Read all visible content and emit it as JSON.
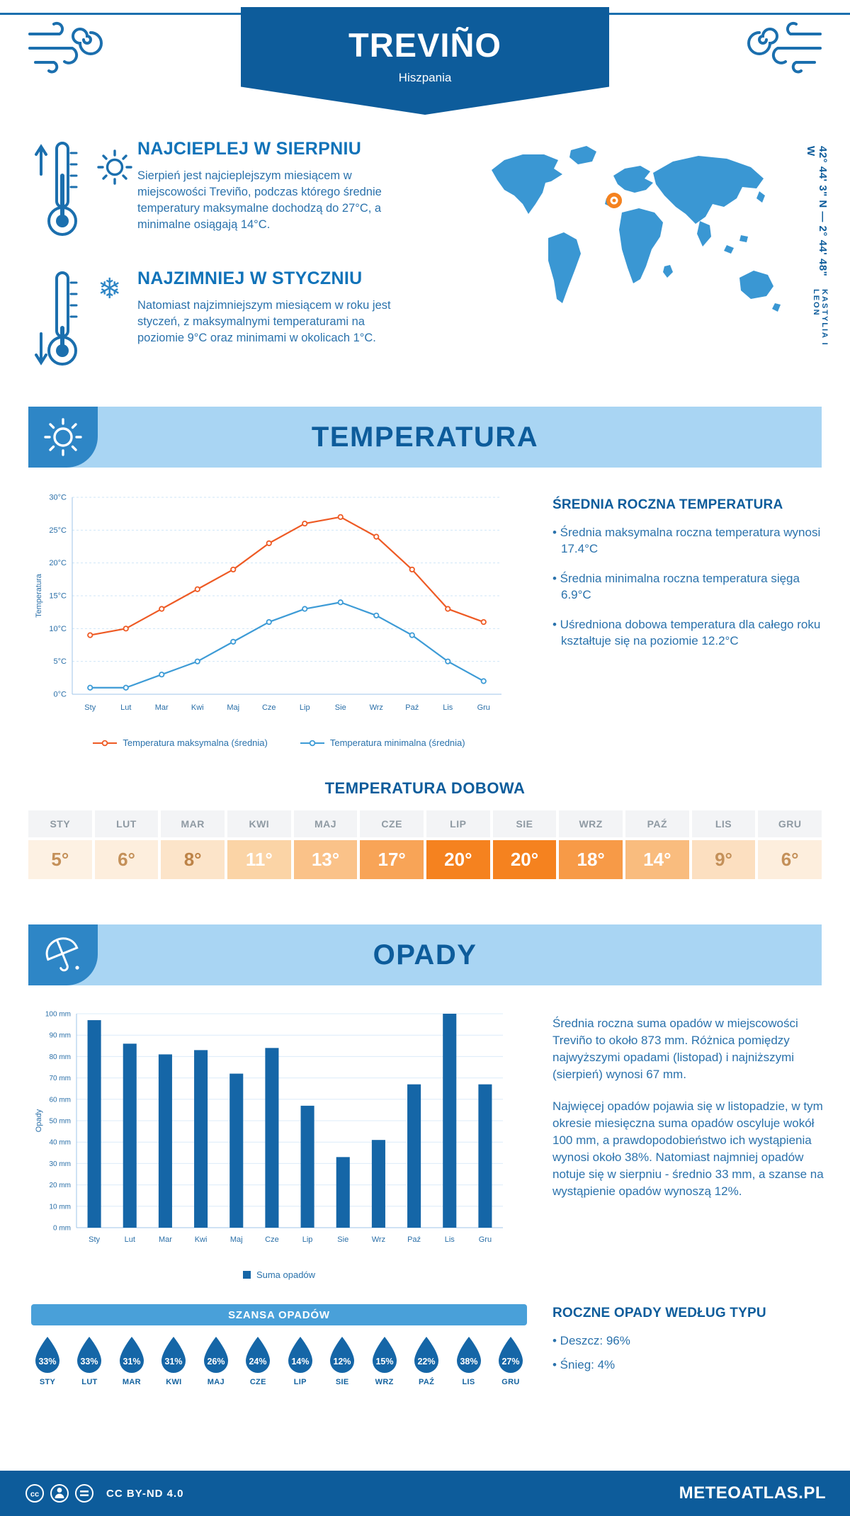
{
  "colors": {
    "primary_dark": "#0d5c9b",
    "band_bg": "#a9d5f3",
    "tile_blue": "#2e86c6",
    "heading_blue": "#1173b9",
    "body_blue": "#2a72ac",
    "max_line": "#ee5a24",
    "min_line": "#3d9bd6",
    "bar_blue": "#1566a7",
    "marker_orange": "#f5821f",
    "chance_bar_bg": "#49a0d9"
  },
  "header": {
    "title": "TREVIÑO",
    "subtitle": "Hiszpania"
  },
  "map": {
    "coordinates": "42° 44' 3\" N — 2° 44' 48\" W",
    "region": "KASTYLIA I LEON"
  },
  "facts": {
    "warmest": {
      "title": "NAJCIEPLEJ W SIERPNIU",
      "text": "Sierpień jest najcieplejszym miesiącem w miejscowości Treviño, podczas którego średnie temperatury maksymalne dochodzą do 27°C, a minimalne osiągają 14°C."
    },
    "coldest": {
      "title": "NAJZIMNIEJ W STYCZNIU",
      "text": "Natomiast najzimniejszym miesiącem w roku jest styczeń, z maksymalnymi temperaturami na poziomie 9°C oraz minimami w okolicach 1°C."
    }
  },
  "temperature_section": {
    "title": "TEMPERATURA",
    "summary_title": "ŚREDNIA ROCZNA TEMPERATURA",
    "bullets": [
      "• Średnia maksymalna roczna temperatura wynosi 17.4°C",
      "• Średnia minimalna roczna temperatura sięga 6.9°C",
      "• Uśredniona dobowa temperatura dla całego roku kształtuje się na poziomie 12.2°C"
    ],
    "daily_title": "TEMPERATURA DOBOWA"
  },
  "daily_table": {
    "months": [
      "STY",
      "LUT",
      "MAR",
      "KWI",
      "MAJ",
      "CZE",
      "LIP",
      "SIE",
      "WRZ",
      "PAŹ",
      "LIS",
      "GRU"
    ],
    "values": [
      "5°",
      "6°",
      "8°",
      "11°",
      "13°",
      "17°",
      "20°",
      "20°",
      "18°",
      "14°",
      "9°",
      "6°"
    ],
    "cell_colors": [
      "#fdf1e3",
      "#fdeedd",
      "#fce4c9",
      "#fbd4a6",
      "#fac289",
      "#f8a457",
      "#f5821f",
      "#f5821f",
      "#f79a47",
      "#f9bc7e",
      "#fcdfc0",
      "#fdeedd"
    ],
    "text_colors": [
      "#c49059",
      "#c49059",
      "#bd8347",
      "#ffffff",
      "#ffffff",
      "#ffffff",
      "#ffffff",
      "#ffffff",
      "#ffffff",
      "#ffffff",
      "#c49059",
      "#c49059"
    ]
  },
  "precip_section": {
    "title": "OPADY",
    "paragraphs": [
      "Średnia roczna suma opadów w miejscowości Treviño to około 873 mm. Różnica pomiędzy najwyższymi opadami (listopad) i najniższymi (sierpień) wynosi 67 mm.",
      "Najwięcej opadów pojawia się w listopadzie, w tym okresie miesięczna suma opadów oscyluje wokół 100 mm, a prawdopodobieństwo ich wystąpienia wynosi około 38%. Natomiast najmniej opadów notuje się w sierpniu - średnio 33 mm, a szanse na wystąpienie opadów wynoszą 12%."
    ],
    "chance_title": "SZANSA OPADÓW",
    "type_title": "ROCZNE OPADY WEDŁUG TYPU",
    "type_items": [
      "• Deszcz: 96%",
      "• Śnieg: 4%"
    ]
  },
  "chance": {
    "months": [
      "STY",
      "LUT",
      "MAR",
      "KWI",
      "MAJ",
      "CZE",
      "LIP",
      "SIE",
      "WRZ",
      "PAŹ",
      "LIS",
      "GRU"
    ],
    "values": [
      "33%",
      "33%",
      "31%",
      "31%",
      "26%",
      "24%",
      "14%",
      "12%",
      "15%",
      "22%",
      "38%",
      "27%"
    ]
  },
  "chart_data": [
    {
      "type": "line",
      "categories": [
        "Sty",
        "Lut",
        "Mar",
        "Kwi",
        "Maj",
        "Cze",
        "Lip",
        "Sie",
        "Wrz",
        "Paź",
        "Lis",
        "Gru"
      ],
      "series": [
        {
          "name": "Temperatura maksymalna (średnia)",
          "color": "#ee5a24",
          "values": [
            9,
            10,
            13,
            16,
            19,
            23,
            26,
            27,
            24,
            19,
            13,
            11
          ]
        },
        {
          "name": "Temperatura minimalna (średnia)",
          "color": "#3d9bd6",
          "values": [
            1,
            1,
            3,
            5,
            8,
            11,
            13,
            14,
            12,
            9,
            5,
            2
          ]
        }
      ],
      "ylabel": "Temperatura",
      "ylim": [
        0,
        30
      ],
      "ytick_step": 5,
      "ytick_suffix": "°C",
      "grid": true,
      "legend_position": "bottom"
    },
    {
      "type": "bar",
      "categories": [
        "Sty",
        "Lut",
        "Mar",
        "Kwi",
        "Maj",
        "Cze",
        "Lip",
        "Sie",
        "Wrz",
        "Paź",
        "Lis",
        "Gru"
      ],
      "series": [
        {
          "name": "Suma opadów",
          "color": "#1566a7",
          "values": [
            97,
            86,
            81,
            83,
            72,
            84,
            57,
            33,
            41,
            67,
            100,
            67
          ]
        }
      ],
      "ylabel": "Opady",
      "ylim": [
        0,
        100
      ],
      "ytick_step": 10,
      "ytick_suffix": " mm",
      "grid": true,
      "legend_position": "bottom"
    }
  ],
  "footer": {
    "license": "CC BY-ND 4.0",
    "brand": "METEOATLAS.PL"
  }
}
